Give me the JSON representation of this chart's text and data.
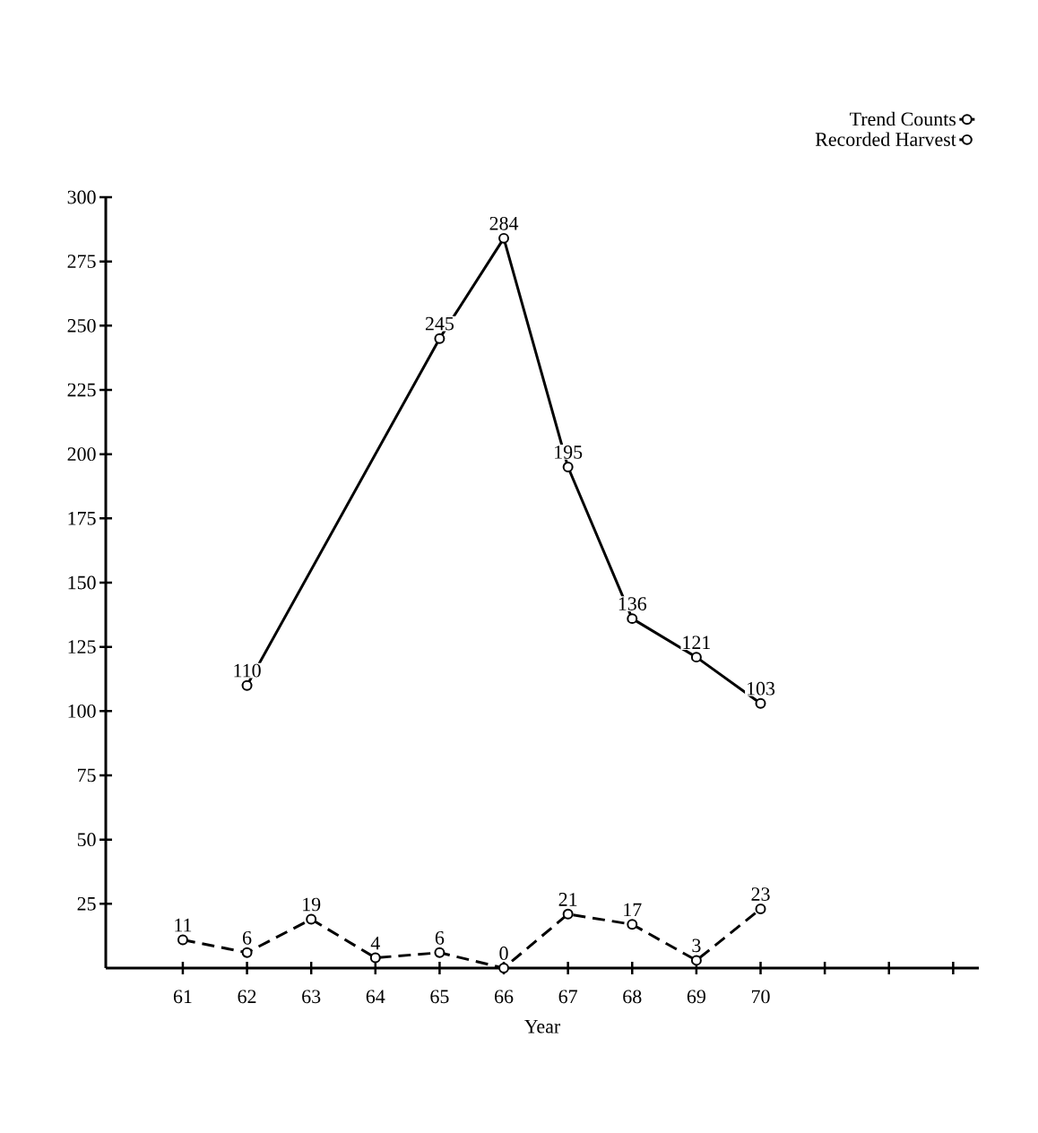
{
  "chart_data": {
    "type": "line",
    "xlabel": "Year",
    "series": [
      {
        "name": "Trend Counts",
        "color": "#000000",
        "line_style": "solid",
        "x": [
          62,
          65,
          66,
          67,
          68,
          69,
          70
        ],
        "values": [
          110,
          245,
          284,
          195,
          136,
          121,
          103
        ]
      },
      {
        "name": "Recorded Harvest",
        "color": "#000000",
        "line_style": "dashed",
        "x": [
          61,
          62,
          63,
          64,
          65,
          66,
          67,
          68,
          69,
          70
        ],
        "values": [
          11,
          6,
          19,
          4,
          6,
          0,
          21,
          17,
          3,
          23
        ]
      }
    ],
    "xlim": [
      59.8,
      73.4
    ],
    "ylim": [
      0,
      300
    ],
    "xticks": [
      61,
      62,
      63,
      64,
      65,
      66,
      67,
      68,
      69,
      70,
      {
        "value": 71,
        "label": null
      },
      {
        "value": 72,
        "label": null
      },
      {
        "value": 73,
        "label": null
      }
    ],
    "yticks": [
      25,
      50,
      75,
      100,
      125,
      150,
      175,
      200,
      225,
      250,
      275,
      300
    ],
    "marker": "circle",
    "data_labels": true,
    "grid": false,
    "legend": "top right"
  }
}
